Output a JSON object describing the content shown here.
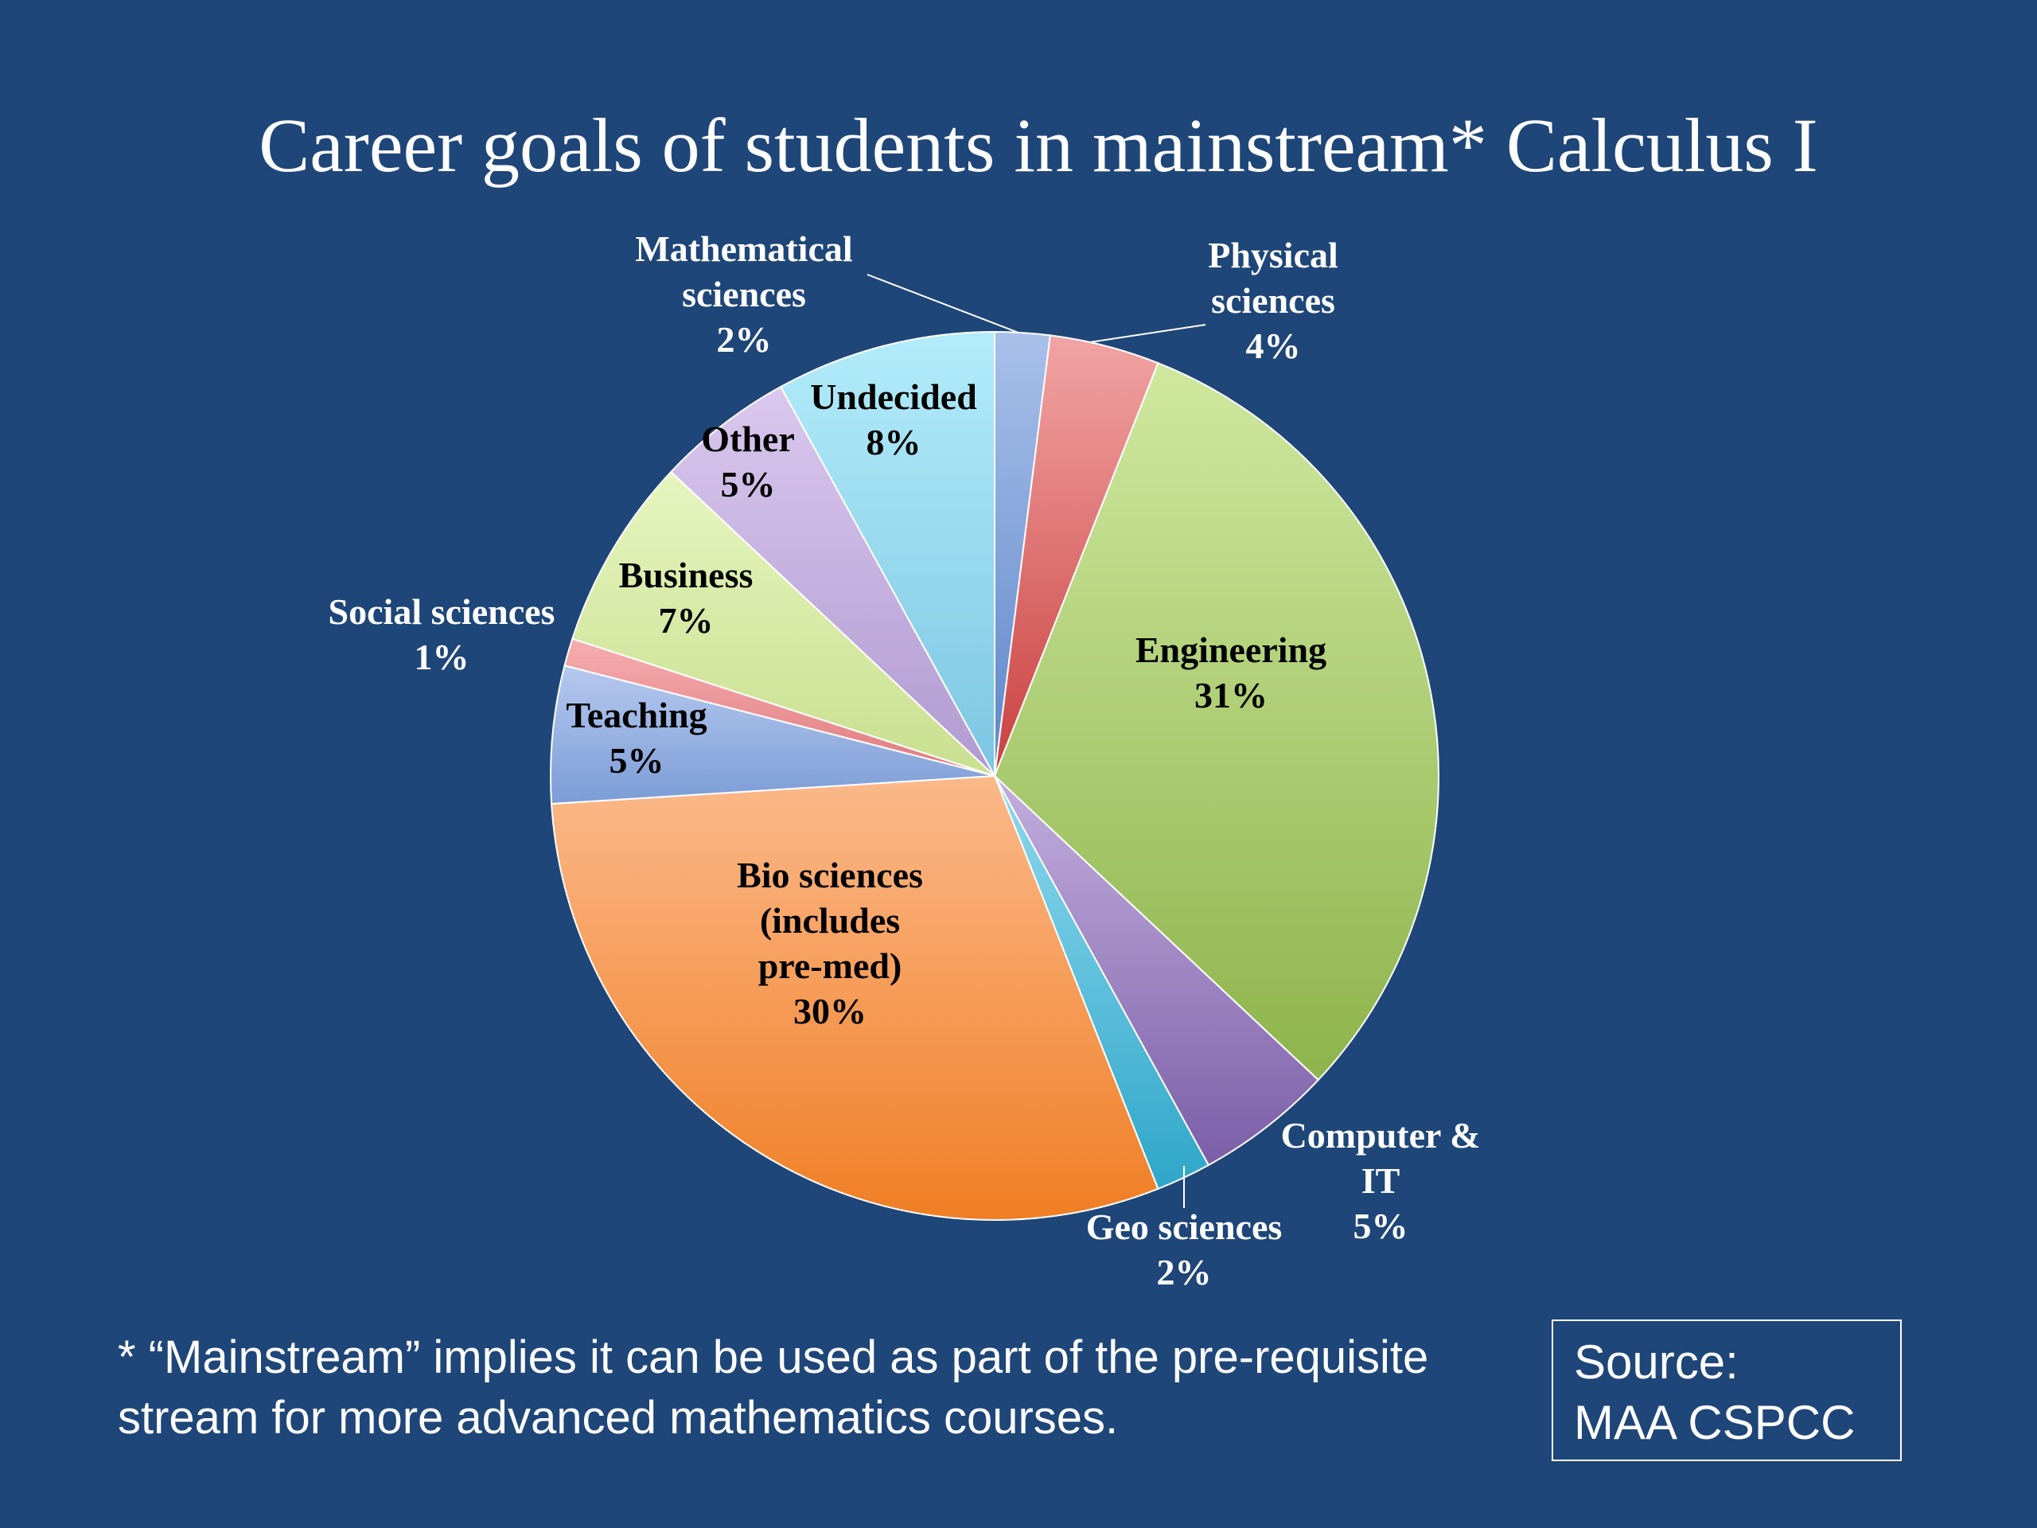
{
  "title": "Career goals of students in mainstream* Calculus I",
  "footnote": "* “Mainstream” implies it can be used as part of the pre-requisite stream for more advanced mathematics courses.",
  "source": {
    "line1": "Source:",
    "line2": "MAA CSPCC"
  },
  "chart_data": {
    "type": "pie",
    "title": "Career goals of students in mainstream* Calculus I",
    "start": "12 o'clock",
    "direction": "clockwise",
    "slices": [
      {
        "name": "Mathematical sciences",
        "value": 2,
        "pct_label": "2%",
        "label_lines": [
          "Mathematical",
          "sciences",
          "2%"
        ],
        "color": "#a9c0ea",
        "color_dark": "#5d86c9",
        "label_color": "#ffffff",
        "label_outside": true
      },
      {
        "name": "Physical sciences",
        "value": 4,
        "pct_label": "4%",
        "label_lines": [
          "Physical",
          "sciences",
          "4%"
        ],
        "color": "#f2a4a4",
        "color_dark": "#c9403f",
        "label_color": "#ffffff",
        "label_outside": true
      },
      {
        "name": "Engineering",
        "value": 31,
        "pct_label": "31%",
        "label_lines": [
          "Engineering",
          "31%"
        ],
        "color": "#cfe89f",
        "color_dark": "#8db44b",
        "label_color": "#000000",
        "label_outside": false
      },
      {
        "name": "Computer & IT",
        "value": 5,
        "pct_label": "5%",
        "label_lines": [
          "Computer &",
          "IT",
          "5%"
        ],
        "color": "#c2aedd",
        "color_dark": "#7b5ea8",
        "label_color": "#ffffff",
        "label_outside": true
      },
      {
        "name": "Geo sciences",
        "value": 2,
        "pct_label": "2%",
        "label_lines": [
          "Geo sciences",
          "2%"
        ],
        "color": "#8fd9ee",
        "color_dark": "#2ea6c8",
        "label_color": "#ffffff",
        "label_outside": true
      },
      {
        "name": "Bio sciences (includes pre-med)",
        "value": 30,
        "pct_label": "30%",
        "label_lines": [
          "Bio sciences",
          "(includes",
          "pre-med)",
          "30%"
        ],
        "color": "#fbb98a",
        "color_dark": "#f07e24",
        "label_color": "#000000",
        "label_outside": false
      },
      {
        "name": "Teaching",
        "value": 5,
        "pct_label": "5%",
        "label_lines": [
          "Teaching",
          "5%"
        ],
        "color": "#b6c9ef",
        "color_dark": "#7b9cd6",
        "label_color": "#000000",
        "label_outside": false
      },
      {
        "name": "Social sciences",
        "value": 1,
        "pct_label": "1%",
        "label_lines": [
          "Social sciences",
          "1%"
        ],
        "color": "#f6aeb0",
        "color_dark": "#e07a7d",
        "label_color": "#ffffff",
        "label_outside": true
      },
      {
        "name": "Business",
        "value": 7,
        "pct_label": "7%",
        "label_lines": [
          "Business",
          "7%"
        ],
        "color": "#e6f5bf",
        "color_dark": "#c9df8f",
        "label_color": "#000000",
        "label_outside": false
      },
      {
        "name": "Other",
        "value": 5,
        "pct_label": "5%",
        "label_lines": [
          "Other",
          "5%"
        ],
        "color": "#dac8ee",
        "color_dark": "#b09ad0",
        "label_color": "#000000",
        "label_outside": false
      },
      {
        "name": "Undecided",
        "value": 8,
        "pct_label": "8%",
        "label_lines": [
          "Undecided",
          "8%"
        ],
        "color": "#b3ecfa",
        "color_dark": "#7cc6e2",
        "label_color": "#000000",
        "label_outside": false
      }
    ]
  }
}
